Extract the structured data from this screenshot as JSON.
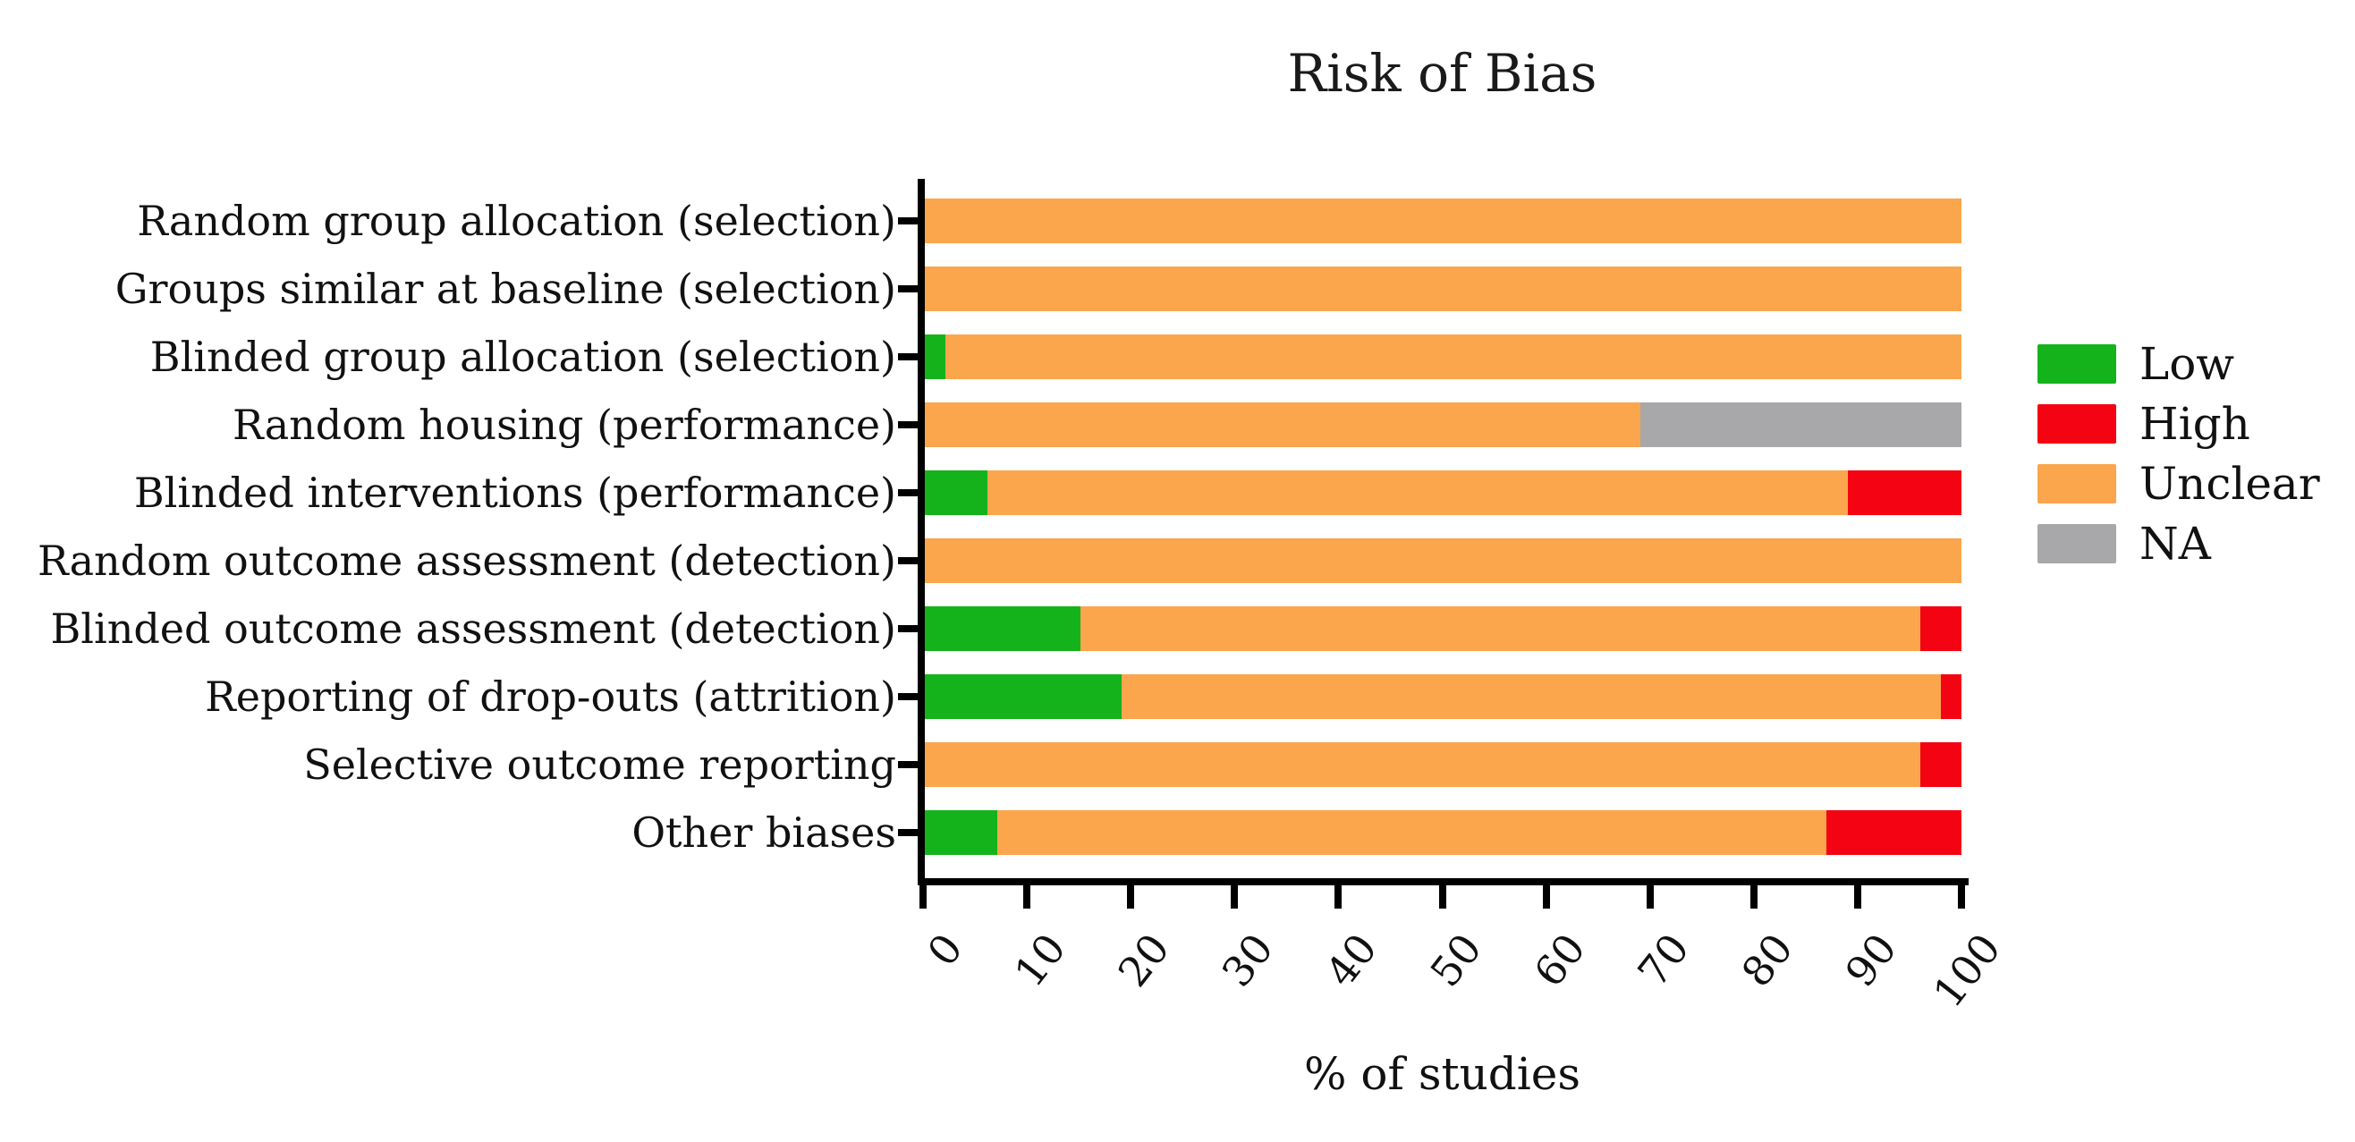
{
  "figure": {
    "title": "Risk of Bias",
    "x_axis_title": "% of studies"
  },
  "chart_data": {
    "type": "bar",
    "orientation": "horizontal",
    "stacked": true,
    "title": "Risk of Bias",
    "xlabel": "% of studies",
    "ylabel": "",
    "xlim": [
      0,
      100
    ],
    "xticks": [
      0,
      10,
      20,
      30,
      40,
      50,
      60,
      70,
      80,
      90,
      100
    ],
    "grid": false,
    "legend_position": "right",
    "legend": [
      {
        "name": "Low",
        "color": "#14B31C"
      },
      {
        "name": "High",
        "color": "#F40313"
      },
      {
        "name": "Unclear",
        "color": "#FBA54D"
      },
      {
        "name": "NA",
        "color": "#A8A8AB"
      }
    ],
    "categories": [
      "Random group allocation (selection)",
      "Groups similar at baseline (selection)",
      "Blinded group allocation (selection)",
      "Random housing (performance)",
      "Blinded interventions (performance)",
      "Random outcome assessment (detection)",
      "Blinded outcome assessment (detection)",
      "Reporting of drop-outs (attrition)",
      "Selective outcome reporting",
      "Other biases"
    ],
    "series": [
      {
        "name": "Low",
        "color": "#14B31C",
        "values": [
          0,
          0,
          2,
          0,
          6,
          0,
          15,
          19,
          0,
          7
        ]
      },
      {
        "name": "Unclear",
        "color": "#FBA54D",
        "values": [
          100,
          100,
          98,
          69,
          83,
          100,
          81,
          79,
          96,
          80
        ]
      },
      {
        "name": "High",
        "color": "#F40313",
        "values": [
          0,
          0,
          0,
          0,
          11,
          0,
          4,
          2,
          4,
          13
        ]
      },
      {
        "name": "NA",
        "color": "#A8A8AB",
        "values": [
          0,
          0,
          0,
          31,
          0,
          0,
          0,
          0,
          0,
          0
        ]
      }
    ]
  }
}
